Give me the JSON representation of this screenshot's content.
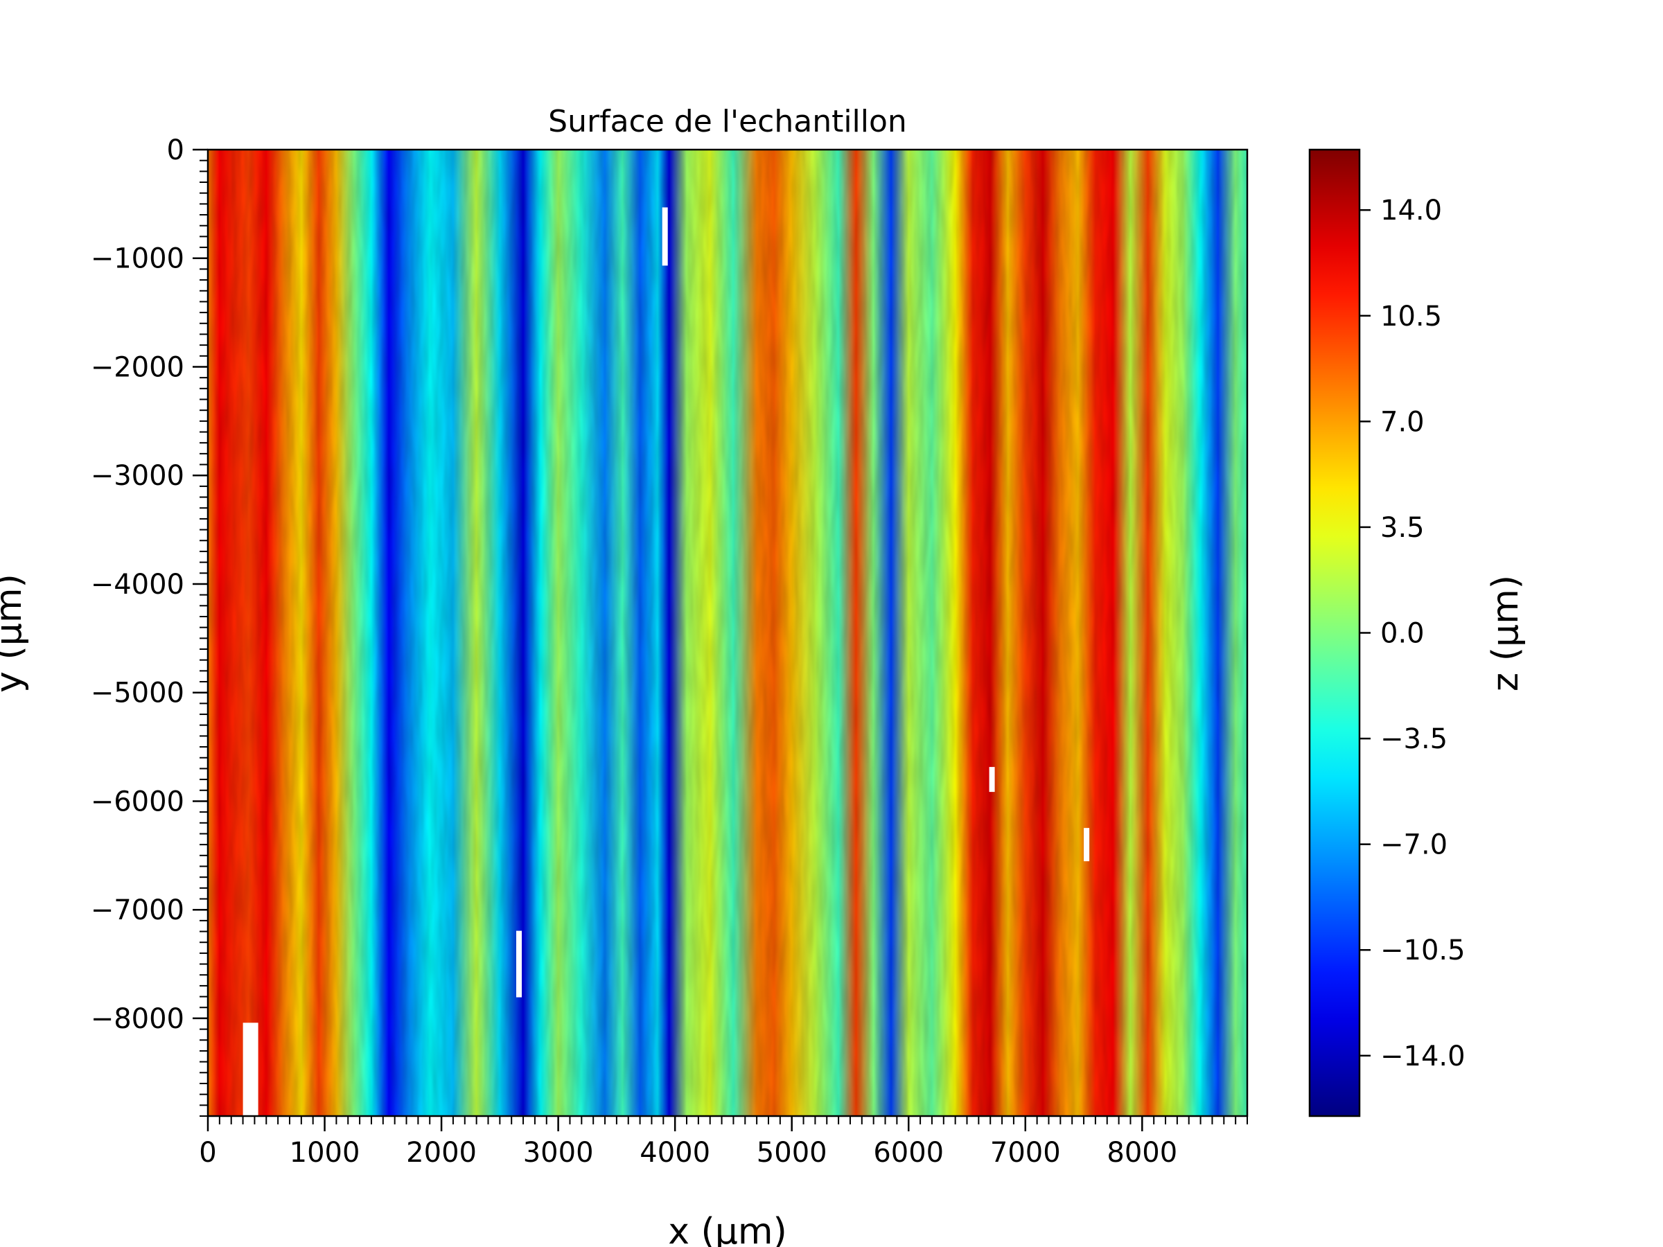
{
  "chart_data": {
    "type": "heatmap",
    "title": "Surface de l'echantillon",
    "xlabel": "x (µm)",
    "ylabel": "y (µm)",
    "xlim": [
      0,
      8900
    ],
    "ylim": [
      -8900,
      0
    ],
    "x_ticks": [
      0,
      1000,
      2000,
      3000,
      4000,
      5000,
      6000,
      7000,
      8000
    ],
    "x_tick_labels": [
      "0",
      "1000",
      "2000",
      "3000",
      "4000",
      "5000",
      "6000",
      "7000",
      "8000"
    ],
    "y_ticks": [
      0,
      -1000,
      -2000,
      -3000,
      -4000,
      -5000,
      -6000,
      -7000,
      -8000
    ],
    "y_tick_labels": [
      "0",
      "−1000",
      "−2000",
      "−3000",
      "−4000",
      "−5000",
      "−6000",
      "−7000",
      "−8000"
    ],
    "colormap": "jet",
    "colorbar": {
      "label": "z (µm)",
      "range": [
        -16.0,
        16.0
      ],
      "ticks": [
        14.0,
        10.5,
        7.0,
        3.5,
        0.0,
        -3.5,
        -7.0,
        -10.5,
        -14.0
      ],
      "tick_labels": [
        "14.0",
        "10.5",
        "7.0",
        "3.5",
        "0.0",
        "−3.5",
        "−7.0",
        "−10.5",
        "−14.0"
      ]
    },
    "profile": {
      "x": [
        0,
        100,
        200,
        350,
        500,
        650,
        800,
        950,
        1100,
        1250,
        1400,
        1550,
        1700,
        1900,
        2100,
        2300,
        2500,
        2700,
        2850,
        3000,
        3200,
        3400,
        3550,
        3700,
        3850,
        3950,
        4100,
        4300,
        4500,
        4700,
        4850,
        5000,
        5200,
        5400,
        5550,
        5700,
        5850,
        6000,
        6200,
        6400,
        6550,
        6700,
        6850,
        7000,
        7150,
        7300,
        7450,
        7600,
        7750,
        7900,
        8050,
        8200,
        8350,
        8500,
        8650,
        8800,
        8900
      ],
      "z": [
        8,
        12,
        11,
        10,
        12,
        8,
        5,
        10,
        6,
        0,
        -4,
        -12,
        -8,
        -4,
        -6,
        2,
        -5,
        -13,
        -4,
        1,
        -3,
        -8,
        -2,
        -9,
        -5,
        -13,
        1,
        3,
        -2,
        8,
        9,
        6,
        2,
        -2,
        10,
        0,
        -10,
        2,
        -1,
        4,
        11,
        13,
        6,
        10,
        13,
        8,
        6,
        11,
        12,
        2,
        10,
        3,
        1,
        -4,
        -10,
        0,
        -2
      ]
    },
    "reference_value": -4000
  }
}
